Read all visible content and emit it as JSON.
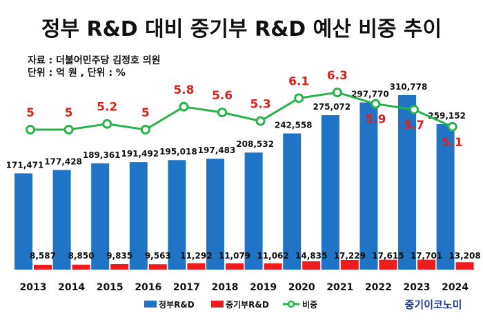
{
  "header": {
    "title": "정부 R&D 대비 중기부 R&D 예산 비중 추이",
    "source": "자료 : 더불어민주당 김정호 의원",
    "units": "단위 : 억 원 , 단위 : %"
  },
  "logo": "중기이코노미",
  "colors": {
    "gov": "#1f74c5",
    "sme": "#ee1c1c",
    "ratio": "#27b24a",
    "ratio_label": "#e0211b"
  },
  "chart_data": {
    "type": "bar",
    "categories": [
      "2013",
      "2014",
      "2015",
      "2016",
      "2017",
      "2018",
      "2019",
      "2020",
      "2021",
      "2022",
      "2023",
      "2024"
    ],
    "series": [
      {
        "name": "정부R&D",
        "type": "bar",
        "values": [
          171471,
          177428,
          189361,
          191492,
          195018,
          197483,
          208532,
          242558,
          275072,
          297770,
          310778,
          259152
        ]
      },
      {
        "name": "중기부R&D",
        "type": "bar",
        "values": [
          8587,
          8850,
          9835,
          9563,
          11292,
          11079,
          11062,
          14835,
          17229,
          17615,
          17701,
          13208
        ]
      },
      {
        "name": "비중",
        "type": "line",
        "values": [
          5,
          5,
          5.2,
          5,
          5.8,
          5.6,
          5.3,
          6.1,
          6.3,
          5.9,
          5.7,
          5.1
        ]
      }
    ],
    "labels": {
      "gov": [
        "171,471",
        "177,428",
        "189,361",
        "191,492",
        "195,018",
        "197,483",
        "208,532",
        "242,558",
        "275,072",
        "297,770",
        "310,778",
        "259,152"
      ],
      "sme": [
        "8,587",
        "8,850",
        "9,835",
        "9,563",
        "11,292",
        "11,079",
        "11,062",
        "14,835",
        "17,229",
        "17,615",
        "17,701",
        "13,208"
      ],
      "ratio": [
        "5",
        "5",
        "5.2",
        "5",
        "5.8",
        "5.6",
        "5.3",
        "6.1",
        "6.3",
        "5.9",
        "5.7",
        "5.1"
      ]
    },
    "legend_position": "bottom",
    "grid": false
  }
}
